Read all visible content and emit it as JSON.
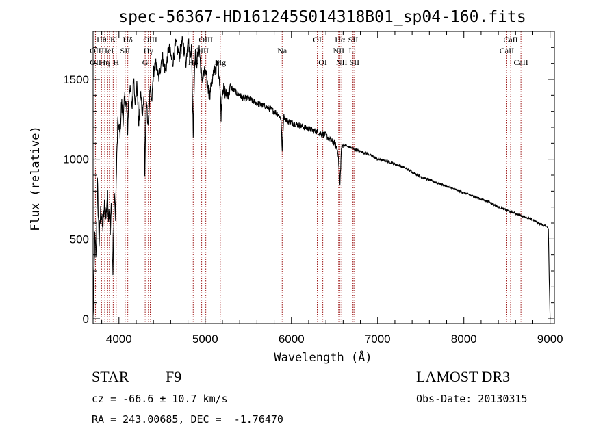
{
  "chart_data": {
    "type": "line",
    "title": "spec-56367-HD161245S014318B01_sp04-160.fits",
    "xlabel": "Wavelength (Å)",
    "ylabel": "Flux (relative)",
    "xlim": [
      3700,
      9050
    ],
    "ylim": [
      -30,
      1800
    ],
    "xticks": [
      4000,
      5000,
      6000,
      7000,
      8000,
      9000
    ],
    "yticks": [
      0,
      500,
      1000,
      1500
    ],
    "series": [
      {
        "name": "flux",
        "x": [
          3700,
          3720,
          3735,
          3750,
          3770,
          3790,
          3810,
          3835,
          3850,
          3865,
          3880,
          3890,
          3900,
          3910,
          3920,
          3930,
          3940,
          3950,
          3960,
          3968,
          3975,
          3985,
          3995,
          4010,
          4030,
          4050,
          4070,
          4090,
          4101,
          4110,
          4130,
          4150,
          4170,
          4190,
          4210,
          4230,
          4250,
          4270,
          4290,
          4300,
          4310,
          4320,
          4340,
          4360,
          4380,
          4400,
          4430,
          4460,
          4500,
          4540,
          4580,
          4620,
          4660,
          4700,
          4740,
          4780,
          4800,
          4820,
          4840,
          4861,
          4880,
          4900,
          4930,
          4960,
          5000,
          5050,
          5100,
          5150,
          5170,
          5184,
          5200,
          5250,
          5300,
          5350,
          5400,
          5450,
          5500,
          5600,
          5700,
          5800,
          5850,
          5880,
          5893,
          5910,
          5950,
          6000,
          6100,
          6200,
          6300,
          6400,
          6450,
          6500,
          6540,
          6563,
          6580,
          6600,
          6650,
          6700,
          6800,
          6900,
          7000,
          7100,
          7200,
          7300,
          7400,
          7500,
          7600,
          7700,
          7800,
          7900,
          8000,
          8100,
          8200,
          8300,
          8400,
          8500,
          8600,
          8700,
          8800,
          8900,
          8960,
          8980,
          8990,
          9000
        ],
        "values": [
          0,
          500,
          380,
          850,
          480,
          700,
          560,
          720,
          640,
          780,
          650,
          700,
          560,
          720,
          500,
          280,
          600,
          800,
          600,
          850,
          1000,
          1200,
          1220,
          1150,
          1350,
          1250,
          1400,
          1300,
          1180,
          1350,
          1480,
          1300,
          1520,
          1350,
          1470,
          1200,
          1420,
          1300,
          1380,
          900,
          1200,
          1350,
          1200,
          1430,
          1350,
          1550,
          1600,
          1500,
          1650,
          1550,
          1700,
          1600,
          1720,
          1650,
          1740,
          1600,
          1780,
          1650,
          1700,
          1180,
          1650,
          1600,
          1700,
          1500,
          1550,
          1400,
          1550,
          1600,
          1480,
          1280,
          1450,
          1400,
          1450,
          1420,
          1400,
          1380,
          1380,
          1350,
          1330,
          1300,
          1280,
          1250,
          1050,
          1270,
          1240,
          1230,
          1210,
          1190,
          1170,
          1150,
          1120,
          1100,
          1050,
          840,
          1070,
          1090,
          1080,
          1070,
          1050,
          1030,
          1000,
          990,
          970,
          950,
          920,
          890,
          870,
          850,
          830,
          810,
          790,
          770,
          750,
          730,
          700,
          680,
          660,
          640,
          620,
          590,
          580,
          560,
          250,
          0
        ]
      }
    ],
    "line_marks": [
      {
        "wl": 3727,
        "label": "OII",
        "row": 2
      },
      {
        "wl": 3728,
        "label": "OII",
        "row": 3
      },
      {
        "wl": 3798,
        "label": "Hθ",
        "row": 1
      },
      {
        "wl": 3835,
        "label": "Hη",
        "row": 3
      },
      {
        "wl": 3869,
        "label": "HeI",
        "row": 2
      },
      {
        "wl": 3889,
        "label": "",
        "row": 0
      },
      {
        "wl": 3933,
        "label": "K",
        "row": 1
      },
      {
        "wl": 3968,
        "label": "H",
        "row": 3
      },
      {
        "wl": 4072,
        "label": "SII",
        "row": 2
      },
      {
        "wl": 4102,
        "label": "Hδ",
        "row": 1
      },
      {
        "wl": 4304,
        "label": "G",
        "row": 3
      },
      {
        "wl": 4341,
        "label": "Hγ",
        "row": 2
      },
      {
        "wl": 4363,
        "label": "OIII",
        "row": 1
      },
      {
        "wl": 4861,
        "label": "Hβ",
        "row": 3
      },
      {
        "wl": 4959,
        "label": "OIII",
        "row": 2
      },
      {
        "wl": 5007,
        "label": "OIII",
        "row": 1
      },
      {
        "wl": 5175,
        "label": "Mg",
        "row": 3
      },
      {
        "wl": 5893,
        "label": "Na",
        "row": 2
      },
      {
        "wl": 6300,
        "label": "OI",
        "row": 1
      },
      {
        "wl": 6364,
        "label": "OI",
        "row": 3
      },
      {
        "wl": 6548,
        "label": "NII",
        "row": 2
      },
      {
        "wl": 6563,
        "label": "Hα",
        "row": 1
      },
      {
        "wl": 6583,
        "label": "NII",
        "row": 3
      },
      {
        "wl": 6707,
        "label": "Li",
        "row": 2
      },
      {
        "wl": 6716,
        "label": "SII",
        "row": 1
      },
      {
        "wl": 6731,
        "label": "SII",
        "row": 3
      },
      {
        "wl": 8498,
        "label": "CaII",
        "row": 2
      },
      {
        "wl": 8542,
        "label": "CaII",
        "row": 1
      },
      {
        "wl": 8662,
        "label": "CaII",
        "row": 3
      }
    ]
  },
  "info": {
    "class_label": "STAR",
    "subclass": "F9",
    "survey": "LAMOST DR3",
    "cz": "cz = -66.6 ± 10.7 km/s",
    "obs_date": "Obs-Date: 20130315",
    "coords": "RA = 243.00685, DEC =  -1.76470"
  },
  "colors": {
    "line_mark": "#9e1a1a",
    "spectrum": "#000000"
  }
}
